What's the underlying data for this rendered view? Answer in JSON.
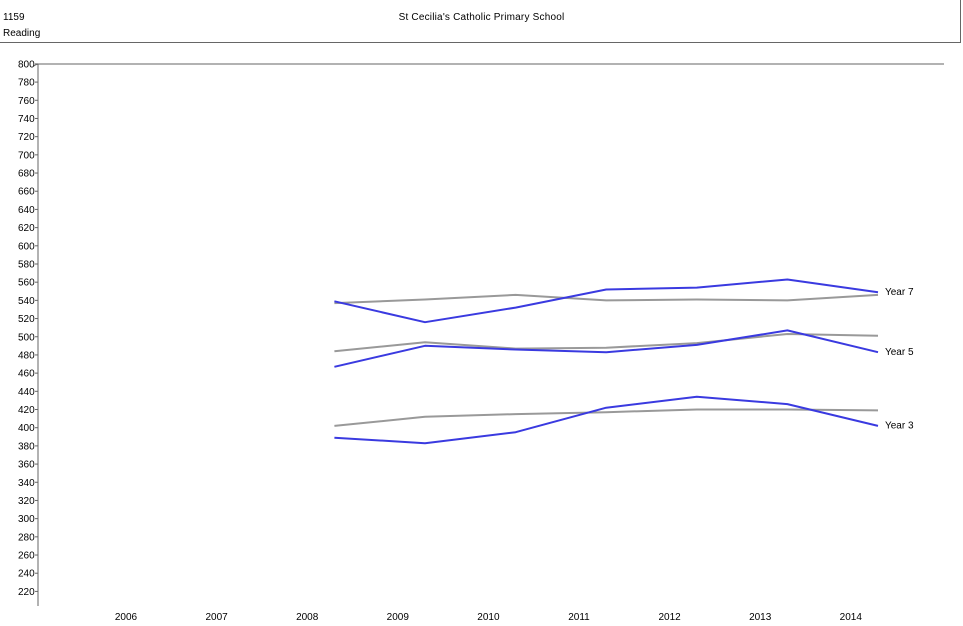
{
  "header": {
    "school_id": "1159",
    "subject": "Reading",
    "school_name": "St Cecilia's Catholic Primary School"
  },
  "chart_data": {
    "type": "line",
    "title": "",
    "xlabel": "",
    "ylabel": "",
    "ylim": [
      210,
      800
    ],
    "y_ticks": [
      220,
      240,
      260,
      280,
      300,
      320,
      340,
      360,
      380,
      400,
      420,
      440,
      460,
      480,
      500,
      520,
      540,
      560,
      580,
      600,
      620,
      640,
      660,
      680,
      700,
      720,
      740,
      760,
      780,
      800
    ],
    "x_categories": [
      "2006",
      "2007",
      "2008",
      "2009",
      "2010",
      "2011",
      "2012",
      "2013",
      "2014"
    ],
    "colors": {
      "school": "#3a3ae0",
      "comparison": "#999999"
    },
    "series": [
      {
        "group": "Year 7",
        "kind": "school",
        "x": [
          2008.3,
          2009.3,
          2010.3,
          2011.3,
          2012.3,
          2013.3,
          2014.3
        ],
        "values": [
          539,
          516,
          532,
          552,
          554,
          563,
          549
        ]
      },
      {
        "group": "Year 7",
        "kind": "comparison",
        "x": [
          2008.3,
          2009.3,
          2010.3,
          2011.3,
          2012.3,
          2013.3,
          2014.3
        ],
        "values": [
          537,
          541,
          546,
          540,
          541,
          540,
          546
        ]
      },
      {
        "group": "Year 5",
        "kind": "school",
        "x": [
          2008.3,
          2009.3,
          2010.3,
          2011.3,
          2012.3,
          2013.3,
          2014.3
        ],
        "values": [
          467,
          490,
          486,
          483,
          491,
          507,
          483
        ]
      },
      {
        "group": "Year 5",
        "kind": "comparison",
        "x": [
          2008.3,
          2009.3,
          2010.3,
          2011.3,
          2012.3,
          2013.3,
          2014.3
        ],
        "values": [
          484,
          494,
          487,
          488,
          493,
          503,
          501
        ]
      },
      {
        "group": "Year 3",
        "kind": "school",
        "x": [
          2008.3,
          2009.3,
          2010.3,
          2011.3,
          2012.3,
          2013.3,
          2014.3
        ],
        "values": [
          389,
          383,
          395,
          422,
          434,
          426,
          402
        ]
      },
      {
        "group": "Year 3",
        "kind": "comparison",
        "x": [
          2008.3,
          2009.3,
          2010.3,
          2011.3,
          2012.3,
          2013.3,
          2014.3
        ],
        "values": [
          402,
          412,
          415,
          417,
          420,
          420,
          419
        ]
      }
    ],
    "line_labels": [
      {
        "text": "Year 7",
        "x": 2014.3,
        "y": 550
      },
      {
        "text": "Year 5",
        "x": 2014.3,
        "y": 484
      },
      {
        "text": "Year 3",
        "x": 2014.3,
        "y": 403
      }
    ]
  }
}
